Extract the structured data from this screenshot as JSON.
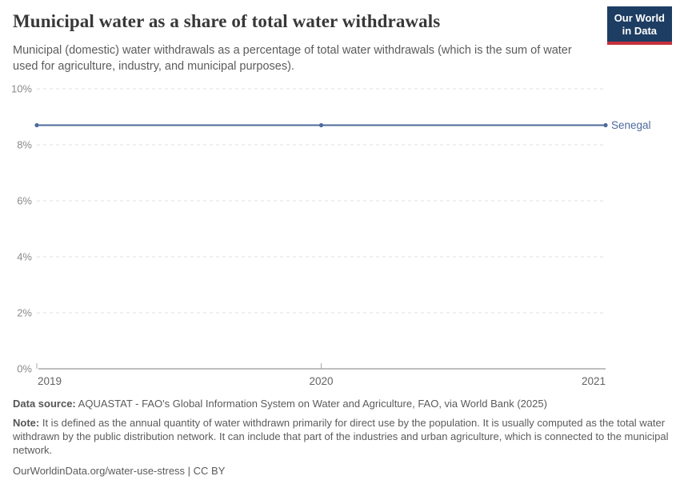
{
  "header": {
    "title": "Municipal water as a share of total water withdrawals",
    "subtitle": "Municipal (domestic) water withdrawals as a percentage of total water withdrawals (which is the sum of water used for agriculture, industry, and municipal purposes).",
    "logo": {
      "line1": "Our World",
      "line2": "in Data",
      "bg_color": "#1d3d63",
      "stripe_color": "#c5303c"
    }
  },
  "chart_data": {
    "type": "line",
    "x": [
      2019,
      2020,
      2021
    ],
    "series": [
      {
        "name": "Senegal",
        "values": [
          8.7,
          8.7,
          8.7
        ],
        "color": "#4c6a9c"
      }
    ],
    "ylim": [
      0,
      10
    ],
    "yticks": [
      0,
      2,
      4,
      6,
      8,
      10
    ],
    "ytick_suffix": "%",
    "xticks": [
      2019,
      2020,
      2021
    ],
    "grid": true,
    "grid_color": "#dddddd",
    "axis_color": "#a8a8a8",
    "ytick_label_color": "#8a8a8a",
    "xtick_label_color": "#636363",
    "legend_position": "end-of-line"
  },
  "footer": {
    "data_source_label": "Data source:",
    "data_source_text": "AQUASTAT - FAO's Global Information System on Water and Agriculture, FAO, via World Bank (2025)",
    "note_label": "Note:",
    "note_text": "It is defined as the annual quantity of water withdrawn primarily for direct use by the population. It is usually computed as the total water withdrawn by the public distribution network. It can include that part of the industries and urban agriculture, which is connected to the municipal network.",
    "citation": "OurWorldinData.org/water-use-stress | CC BY"
  }
}
